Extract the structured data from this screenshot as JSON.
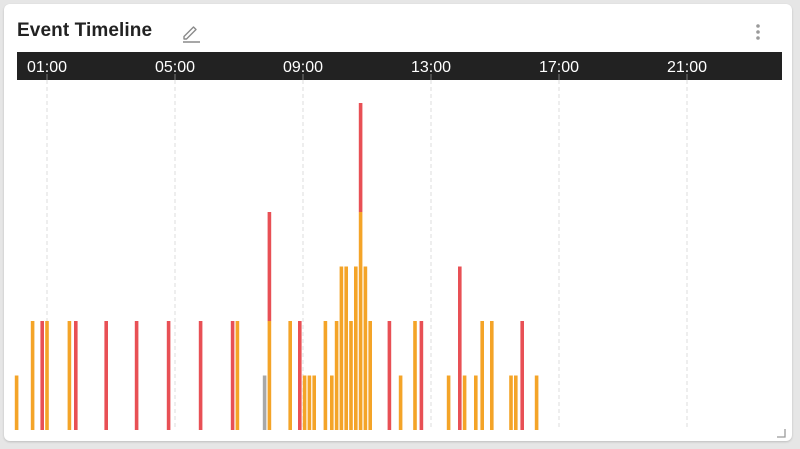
{
  "widget": {
    "title": "Event Timeline",
    "edit_icon": "pencil-icon",
    "menu_icon": "more-vertical-icon",
    "resize_icon": "resize-corner-icon"
  },
  "colors": {
    "axis_bar": "#222222",
    "axis_text": "#ffffff",
    "grid": "#dcdcdc",
    "critical": "#e85055",
    "warning": "#f4a428",
    "info": "#a8a8a8"
  },
  "chart_data": {
    "type": "bar",
    "stacked": true,
    "x_axis": {
      "label": "",
      "ticks": [
        "01:00",
        "05:00",
        "09:00",
        "13:00",
        "17:00",
        "21:00"
      ],
      "tick_hours": [
        1,
        5,
        9,
        13,
        17,
        21
      ],
      "range_hours": [
        0,
        24
      ],
      "position": "top"
    },
    "y_axis": {
      "label": "",
      "range": [
        0,
        6
      ],
      "shown": false
    },
    "grid": true,
    "legend": "none",
    "series": [
      {
        "key": "info",
        "color": "#a8a8a8"
      },
      {
        "key": "warning",
        "color": "#f4a428"
      },
      {
        "key": "critical",
        "color": "#e85055"
      }
    ],
    "events": [
      {
        "hour": 0.05,
        "warning": 1,
        "critical": 0,
        "info": 0
      },
      {
        "hour": 0.55,
        "warning": 2,
        "critical": 0,
        "info": 0
      },
      {
        "hour": 0.85,
        "warning": 0,
        "critical": 2,
        "info": 0
      },
      {
        "hour": 1.0,
        "warning": 2,
        "critical": 0,
        "info": 0
      },
      {
        "hour": 1.7,
        "warning": 2,
        "critical": 0,
        "info": 0
      },
      {
        "hour": 1.9,
        "warning": 0,
        "critical": 2,
        "info": 0
      },
      {
        "hour": 2.85,
        "warning": 0,
        "critical": 2,
        "info": 0
      },
      {
        "hour": 3.8,
        "warning": 0,
        "critical": 2,
        "info": 0
      },
      {
        "hour": 4.8,
        "warning": 0,
        "critical": 2,
        "info": 0
      },
      {
        "hour": 5.8,
        "warning": 0,
        "critical": 2,
        "info": 0
      },
      {
        "hour": 6.8,
        "warning": 0,
        "critical": 2,
        "info": 0
      },
      {
        "hour": 6.95,
        "warning": 2,
        "critical": 0,
        "info": 0
      },
      {
        "hour": 7.8,
        "warning": 0,
        "critical": 0,
        "info": 1
      },
      {
        "hour": 7.95,
        "warning": 2,
        "critical": 2,
        "info": 0
      },
      {
        "hour": 8.6,
        "warning": 2,
        "critical": 0,
        "info": 0
      },
      {
        "hour": 8.9,
        "warning": 0,
        "critical": 2,
        "info": 0
      },
      {
        "hour": 9.05,
        "warning": 1,
        "critical": 0,
        "info": 0
      },
      {
        "hour": 9.2,
        "warning": 1,
        "critical": 0,
        "info": 0
      },
      {
        "hour": 9.35,
        "warning": 1,
        "critical": 0,
        "info": 0
      },
      {
        "hour": 9.7,
        "warning": 2,
        "critical": 0,
        "info": 0
      },
      {
        "hour": 9.9,
        "warning": 1,
        "critical": 0,
        "info": 0
      },
      {
        "hour": 10.05,
        "warning": 2,
        "critical": 0,
        "info": 0
      },
      {
        "hour": 10.2,
        "warning": 3,
        "critical": 0,
        "info": 0
      },
      {
        "hour": 10.35,
        "warning": 3,
        "critical": 0,
        "info": 0
      },
      {
        "hour": 10.5,
        "warning": 2,
        "critical": 0,
        "info": 0
      },
      {
        "hour": 10.65,
        "warning": 3,
        "critical": 0,
        "info": 0
      },
      {
        "hour": 10.8,
        "warning": 4,
        "critical": 2,
        "info": 0
      },
      {
        "hour": 10.95,
        "warning": 3,
        "critical": 0,
        "info": 0
      },
      {
        "hour": 11.1,
        "warning": 2,
        "critical": 0,
        "info": 0
      },
      {
        "hour": 11.7,
        "warning": 0,
        "critical": 2,
        "info": 0
      },
      {
        "hour": 12.05,
        "warning": 1,
        "critical": 0,
        "info": 0
      },
      {
        "hour": 12.5,
        "warning": 2,
        "critical": 0,
        "info": 0
      },
      {
        "hour": 12.7,
        "warning": 0,
        "critical": 2,
        "info": 0
      },
      {
        "hour": 13.55,
        "warning": 1,
        "critical": 0,
        "info": 0
      },
      {
        "hour": 13.9,
        "warning": 0,
        "critical": 3,
        "info": 0
      },
      {
        "hour": 14.05,
        "warning": 1,
        "critical": 0,
        "info": 0
      },
      {
        "hour": 14.4,
        "warning": 1,
        "critical": 0,
        "info": 0
      },
      {
        "hour": 14.6,
        "warning": 2,
        "critical": 0,
        "info": 0
      },
      {
        "hour": 14.9,
        "warning": 2,
        "critical": 0,
        "info": 0
      },
      {
        "hour": 15.5,
        "warning": 1,
        "critical": 0,
        "info": 0
      },
      {
        "hour": 15.65,
        "warning": 1,
        "critical": 0,
        "info": 0
      },
      {
        "hour": 15.85,
        "warning": 0,
        "critical": 2,
        "info": 0
      },
      {
        "hour": 16.3,
        "warning": 1,
        "critical": 0,
        "info": 0
      }
    ]
  }
}
